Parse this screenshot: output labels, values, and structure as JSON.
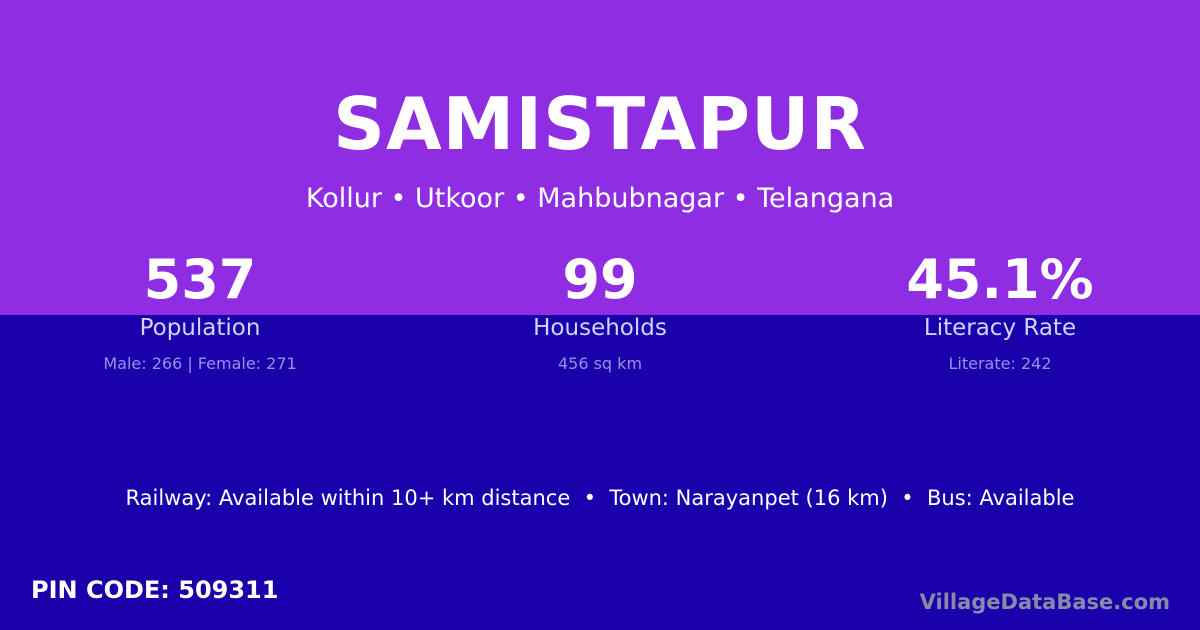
{
  "village": "SAMISTAPUR",
  "location": "Kollur • Utkoor • Mahbubnagar • Telangana",
  "stats": [
    {
      "value": "537",
      "label": "Population",
      "detail": "Male: 266 | Female: 271"
    },
    {
      "value": "99",
      "label": "Households",
      "detail": "456 sq km"
    },
    {
      "value": "45.1%",
      "label": "Literacy Rate",
      "detail": "Literate: 242"
    }
  ],
  "info": "Railway: Available within 10+ km distance  •  Town: Narayanpet (16 km)  •  Bus: Available",
  "pin": "PIN CODE: 509311",
  "brand": "VillageDataBase.com",
  "colors": {
    "top": "#8e2de2",
    "bottom": "#1a00ab"
  }
}
